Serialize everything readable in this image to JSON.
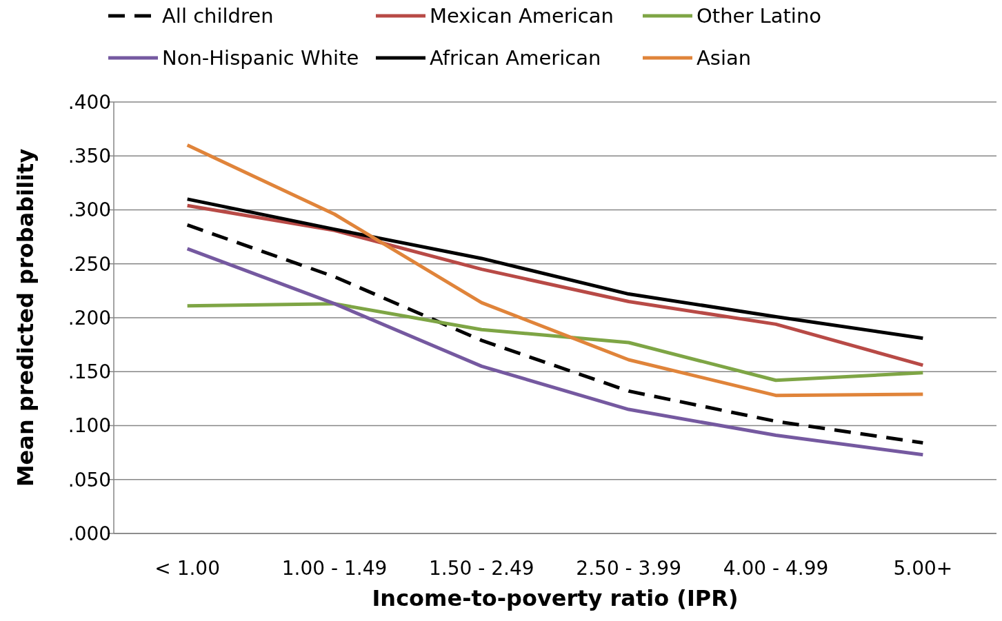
{
  "chart_data": {
    "type": "line",
    "xlabel": "Income-to-poverty ratio (IPR)",
    "ylabel": "Mean predicted probability",
    "categories": [
      "< 1.00",
      "1.00 - 1.49",
      "1.50 - 2.49",
      "2.50 - 3.99",
      "4.00 - 4.99",
      "5.00+"
    ],
    "ylim": [
      0,
      0.4
    ],
    "yticks": [
      {
        "value": 0,
        "label": ".000"
      },
      {
        "value": 0.05,
        "label": ".050"
      },
      {
        "value": 0.1,
        "label": ".100"
      },
      {
        "value": 0.15,
        "label": ".150"
      },
      {
        "value": 0.2,
        "label": ".200"
      },
      {
        "value": 0.25,
        "label": ".250"
      },
      {
        "value": 0.3,
        "label": ".300"
      },
      {
        "value": 0.35,
        "label": ".350"
      },
      {
        "value": 0.4,
        "label": ".400"
      }
    ],
    "grid": "y",
    "legend": "top",
    "series": [
      {
        "name": "All children",
        "color": "#000000",
        "line_style": "dashed",
        "values": [
          0.286,
          0.238,
          0.179,
          0.132,
          0.104,
          0.084
        ]
      },
      {
        "name": "Mexican American",
        "color": "#b84a46",
        "values": [
          0.304,
          0.281,
          0.245,
          0.215,
          0.194,
          0.156
        ]
      },
      {
        "name": "Other Latino",
        "color": "#7ea545",
        "values": [
          0.211,
          0.213,
          0.189,
          0.177,
          0.142,
          0.149
        ]
      },
      {
        "name": "Non-Hispanic White",
        "color": "#7559a0",
        "values": [
          0.264,
          0.213,
          0.155,
          0.115,
          0.091,
          0.073
        ]
      },
      {
        "name": "African American",
        "color": "#000000",
        "values": [
          0.31,
          0.282,
          0.255,
          0.222,
          0.201,
          0.181
        ]
      },
      {
        "name": "Asian",
        "color": "#e0843a",
        "values": [
          0.36,
          0.296,
          0.214,
          0.161,
          0.128,
          0.129
        ]
      }
    ]
  }
}
